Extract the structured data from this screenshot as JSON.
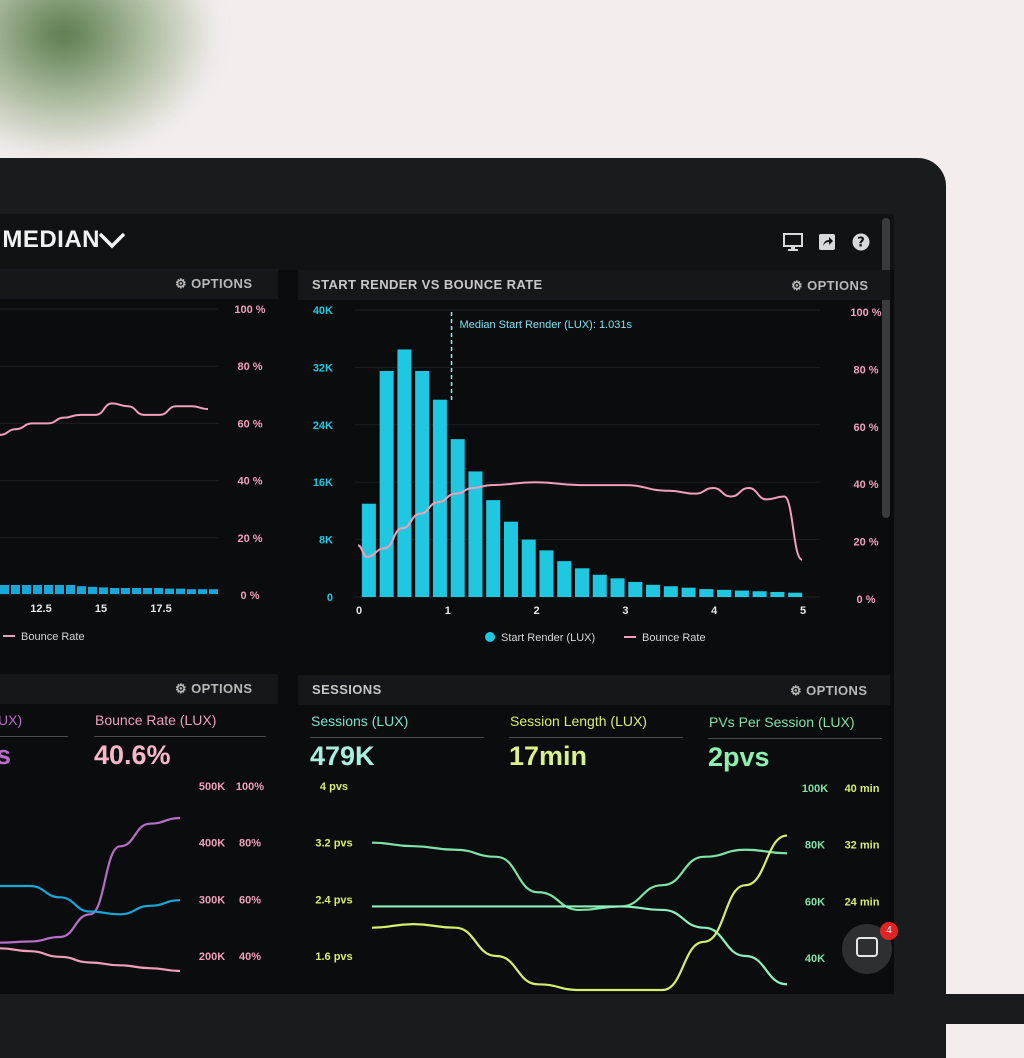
{
  "header": {
    "title": "G MEDIAN"
  },
  "icons": {
    "monitor": "monitor-icon",
    "share": "share-icon",
    "help": "help-icon"
  },
  "panels": {
    "left_top": {
      "options": "OPTIONS",
      "legend_bounce": "Bounce Rate"
    },
    "render_vs_bounce": {
      "title": "START RENDER VS BOUNCE RATE",
      "options": "OPTIONS",
      "median_label": "Median Start Render (LUX): 1.031s",
      "legend_render": "Start Render (LUX)",
      "legend_bounce": "Bounce Rate"
    },
    "left_bottom": {
      "options": "OPTIONS",
      "metric_left_cut": "UX)",
      "metric_left_val_cut": "s",
      "bounce_label": "Bounce Rate (LUX)",
      "bounce_value": "40.6%"
    },
    "sessions": {
      "title": "SESSIONS",
      "options": "OPTIONS",
      "sessions_label": "Sessions (LUX)",
      "sessions_value": "479K",
      "length_label": "Session Length (LUX)",
      "length_value": "17min",
      "pvs_label": "PVs Per Session (LUX)",
      "pvs_value": "2pvs"
    }
  },
  "chat": {
    "badge": "4"
  },
  "colors": {
    "cyan": "#1fc8e0",
    "pink": "#f0a0b8",
    "green": "#7fe3a8",
    "lime": "#d4ef6e",
    "purple": "#b66fc7",
    "blue": "#1ba6d8"
  },
  "chart_data": [
    {
      "type": "bar",
      "title": "START RENDER VS BOUNCE RATE",
      "x_ticks": [
        "0",
        "1",
        "2",
        "3",
        "4",
        "5"
      ],
      "y_ticks": [
        "0",
        "8K",
        "16K",
        "24K",
        "32K",
        "40K"
      ],
      "y2_ticks": [
        "0 %",
        "20 %",
        "40 %",
        "60 %",
        "80 %",
        "100 %"
      ],
      "ylim": [
        0,
        40000
      ],
      "xlim": [
        0,
        5.1
      ],
      "series": [
        {
          "name": "Start Render (LUX)",
          "type": "bar",
          "x": [
            0.1,
            0.3,
            0.5,
            0.7,
            0.9,
            1.1,
            1.3,
            1.5,
            1.7,
            1.9,
            2.1,
            2.3,
            2.5,
            2.7,
            2.9,
            3.1,
            3.3,
            3.5,
            3.7,
            3.9,
            4.1,
            4.3,
            4.5,
            4.7,
            4.9
          ],
          "values": [
            13000,
            31500,
            34500,
            31500,
            27500,
            22000,
            17500,
            13500,
            10500,
            8000,
            6500,
            5000,
            4000,
            3100,
            2600,
            2100,
            1700,
            1500,
            1300,
            1100,
            1000,
            900,
            800,
            700,
            600
          ]
        },
        {
          "name": "Bounce Rate",
          "type": "line",
          "x": [
            0,
            0.1,
            0.3,
            0.5,
            0.7,
            0.9,
            1.1,
            1.3,
            1.5,
            2,
            2.5,
            3,
            3.5,
            3.8,
            4,
            4.2,
            4.4,
            4.6,
            4.8,
            5
          ],
          "values": [
            18,
            14,
            17,
            24,
            29,
            33,
            36,
            38,
            39,
            40,
            39,
            39,
            37,
            36,
            38,
            35,
            38,
            34,
            35,
            13
          ]
        }
      ],
      "median_x": 1.031
    },
    {
      "type": "line",
      "title": "",
      "x_ticks": [
        "12.5",
        "15",
        "17.5"
      ],
      "y2_ticks": [
        "0 %",
        "20 %",
        "40 %",
        "60 %",
        "80 %",
        "100 %"
      ],
      "series": [
        {
          "name": "Bounce Rate",
          "values": [
            56,
            58,
            60,
            60,
            62,
            63,
            63,
            67,
            66,
            63,
            63,
            66,
            66,
            65
          ]
        },
        {
          "name": "",
          "type": "bar",
          "values": [
            3,
            3,
            3,
            3,
            3,
            3,
            3,
            2.6,
            2.4,
            2.2,
            2,
            2,
            2,
            2,
            2,
            1.8,
            1.8,
            1.6,
            1.6,
            1.6
          ]
        }
      ]
    },
    {
      "type": "line",
      "title": "",
      "y_ticks_left": [
        "200K",
        "300K",
        "400K",
        "500K"
      ],
      "y_ticks_right": [
        "40%",
        "60%",
        "80%",
        "100%"
      ],
      "series": [
        {
          "name": "",
          "color": "purple",
          "values": [
            250,
            252,
            260,
            300,
            420,
            460,
            470
          ]
        },
        {
          "name": "",
          "color": "blue",
          "values": [
            350,
            350,
            330,
            305,
            300,
            315,
            325
          ]
        },
        {
          "name": "",
          "color": "pink",
          "values": [
            240,
            235,
            225,
            215,
            210,
            205,
            200
          ]
        }
      ]
    },
    {
      "type": "line",
      "title": "SESSIONS",
      "y_ticks_left": [
        "1.6 pvs",
        "2.4 pvs",
        "3.2 pvs",
        "4 pvs"
      ],
      "y_ticks_right_a": [
        "40K",
        "60K",
        "80K",
        "100K"
      ],
      "y_ticks_right_b": [
        "24 min",
        "32 min",
        "40 min"
      ],
      "series": [
        {
          "name": "",
          "color": "green",
          "values": [
            3.2,
            3.15,
            3.1,
            3.0,
            2.5,
            2.25,
            2.3,
            2.6,
            3.0,
            3.1,
            3.05
          ]
        },
        {
          "name": "",
          "color": "mint",
          "values": [
            2.3,
            2.3,
            2.3,
            2.3,
            2.3,
            2.3,
            2.3,
            2.25,
            2.0,
            1.6,
            1.2
          ]
        },
        {
          "name": "",
          "color": "lime",
          "values": [
            2.0,
            2.05,
            2.0,
            1.6,
            1.2,
            1.0,
            1.0,
            1.1,
            1.8,
            2.6,
            3.3
          ]
        }
      ]
    }
  ]
}
